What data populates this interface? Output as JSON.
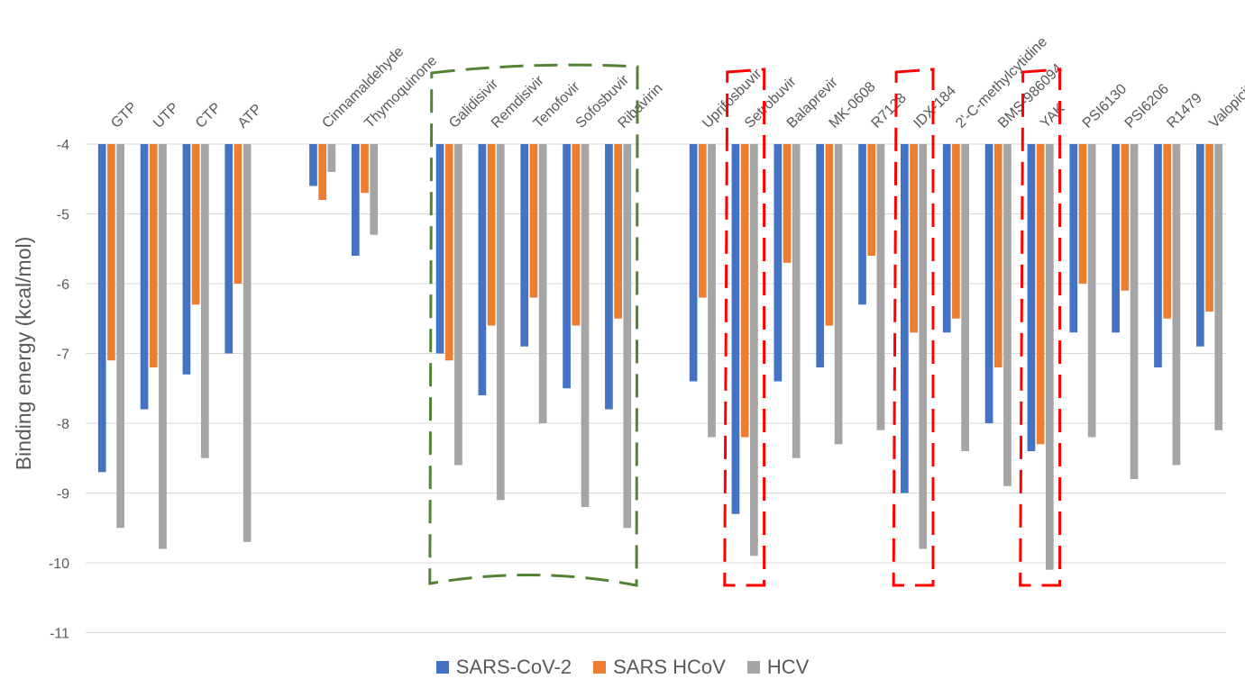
{
  "chart_data": {
    "type": "bar",
    "title": "",
    "xlabel": "",
    "ylabel": "Binding energy (kcal/mol)",
    "ylim": [
      -11,
      -4
    ],
    "yticks": [
      -4,
      -5,
      -6,
      -7,
      -8,
      -9,
      -10,
      -11
    ],
    "grid": true,
    "legend_position": "bottom",
    "categories": [
      "GTP",
      "UTP",
      "CTP",
      "ATP",
      "",
      "Cinnamaldehyde",
      "Thymoquinone",
      "",
      "Galidisivir",
      "Remdisivir",
      "Tenofovir",
      "Sofosbuvir",
      "Ribavirin",
      "",
      "Uprifosbuvir",
      "Setrobuvir",
      "Balaprevir",
      "MK-0608",
      "R7128",
      "IDX-184",
      "2'-C-methylcytidine",
      "BMS-986094",
      "YAK",
      "PSI6130",
      "PSI6206",
      "R1479",
      "Valopicitabine"
    ],
    "series": [
      {
        "name": "SARS-CoV-2",
        "color": "#4472C4",
        "values": [
          -8.7,
          -7.8,
          -7.3,
          -7.0,
          null,
          -4.6,
          -5.6,
          null,
          -7.0,
          -7.6,
          -6.9,
          -7.5,
          -7.8,
          null,
          -7.4,
          -9.3,
          -7.4,
          -7.2,
          -6.3,
          -9.0,
          -6.7,
          -8.0,
          -8.4,
          -6.7,
          -6.7,
          -7.2,
          -6.9
        ]
      },
      {
        "name": "SARS HCoV",
        "color": "#ED7D31",
        "values": [
          -7.1,
          -7.2,
          -6.3,
          -6.0,
          null,
          -4.8,
          -4.7,
          null,
          -7.1,
          -6.6,
          -6.2,
          -6.6,
          -6.5,
          null,
          -6.2,
          -8.2,
          -5.7,
          -6.6,
          -5.6,
          -6.7,
          -6.5,
          -7.2,
          -8.3,
          -6.0,
          -6.1,
          -6.5,
          -6.4
        ]
      },
      {
        "name": "HCV",
        "color": "#A5A5A5",
        "values": [
          -9.5,
          -9.8,
          -8.5,
          -9.7,
          null,
          -4.4,
          -5.3,
          null,
          -8.6,
          -9.1,
          -8.0,
          -9.2,
          -9.5,
          null,
          -8.2,
          -9.9,
          -8.5,
          -8.3,
          -8.1,
          -9.8,
          -8.4,
          -8.9,
          -10.1,
          -8.2,
          -8.8,
          -8.6,
          -8.1
        ]
      }
    ],
    "highlight_boxes": [
      {
        "from": "Galidisivir",
        "to": "Ribavirin",
        "color": "#548235",
        "style": "dashed"
      },
      {
        "from": "Setrobuvir",
        "to": "Setrobuvir",
        "color": "#FF0000",
        "style": "dashed"
      },
      {
        "from": "IDX-184",
        "to": "IDX-184",
        "color": "#FF0000",
        "style": "dashed"
      },
      {
        "from": "YAK",
        "to": "YAK",
        "color": "#FF0000",
        "style": "dashed"
      }
    ]
  }
}
